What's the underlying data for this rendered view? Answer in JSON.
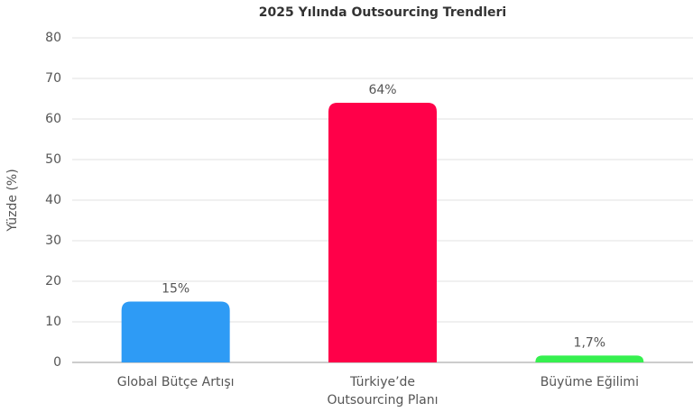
{
  "chart_data": {
    "type": "bar",
    "title": "2025 Yılında Outsourcing Trendleri",
    "y_label": "Yüzde (%)",
    "categories": [
      "Global Bütçe Artışı",
      "Türkiye’de Outsourcing Planı",
      "Büyüme Eğilimi"
    ],
    "values": [
      15,
      64,
      1.7
    ],
    "value_labels": [
      "15%",
      "64%",
      "1,7%"
    ],
    "colors": [
      "#2e9bf5",
      "#ff0049",
      "#36f04f"
    ],
    "ylim": [
      0,
      80
    ],
    "yticks": [
      0,
      10,
      20,
      30,
      40,
      50,
      60,
      70,
      80
    ],
    "grid": true
  }
}
